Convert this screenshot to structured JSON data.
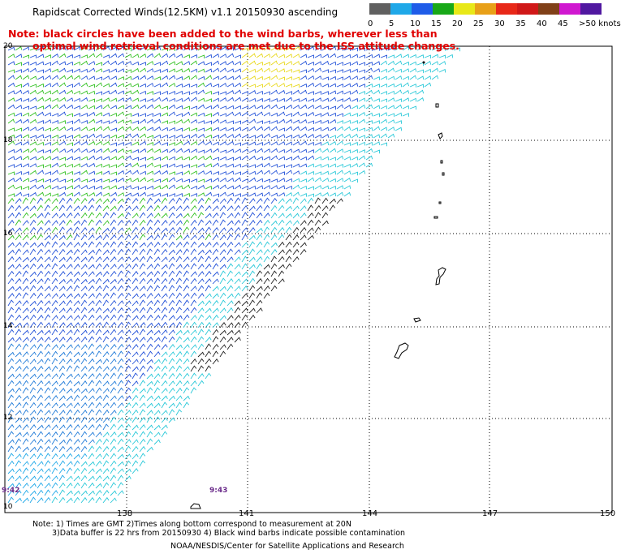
{
  "header": {
    "title": "Rapidscat Corrected Winds(12.5KM) v1.1 20150930 ascending",
    "note_line1": "Note: black circles have been added to the wind barbs, wherever less than",
    "note_line2": "optimal wind retrieval conditions are met due to the ISS attitude changes."
  },
  "legend": {
    "labels": [
      "0",
      "5",
      "10",
      "15",
      "20",
      "25",
      "30",
      "35",
      "40",
      "45",
      ">50 knots"
    ],
    "colors": [
      "#606060",
      "#1fa8e8",
      "#1f5ce8",
      "#18a818",
      "#e8e818",
      "#e8a018",
      "#e82818",
      "#d01818",
      "#804018",
      "#d018d0",
      "#5018a0"
    ]
  },
  "map": {
    "lon_labels": [
      "138",
      "141",
      "144",
      "147",
      "150"
    ],
    "lat_labels": [
      "20",
      "18",
      "16",
      "14",
      "12",
      "10"
    ],
    "time_labels": [
      "9:42",
      "9:43"
    ],
    "grid": true
  },
  "footer": {
    "line1": "Note: 1) Times are GMT 2)Times along bottom correspond to measurement at 20N",
    "line2": "3)Data buffer is 22 hrs from 20150930 4) Black wind barbs indicate possible contamination",
    "line3": "NOAA/NESDIS/Center for Satellite Applications and Research"
  }
}
